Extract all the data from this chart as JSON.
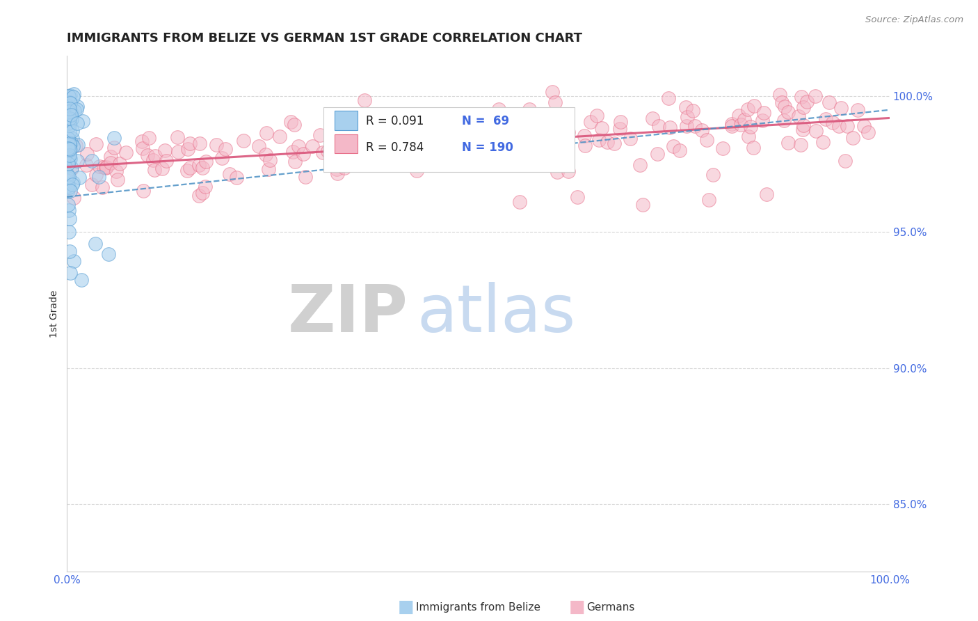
{
  "title": "IMMIGRANTS FROM BELIZE VS GERMAN 1ST GRADE CORRELATION CHART",
  "source_text": "Source: ZipAtlas.com",
  "ylabel": "1st Grade",
  "y_ticks": [
    0.85,
    0.9,
    0.95,
    1.0
  ],
  "y_tick_labels": [
    "85.0%",
    "90.0%",
    "95.0%",
    "100.0%"
  ],
  "x_range": [
    0.0,
    1.0
  ],
  "y_range": [
    0.825,
    1.015
  ],
  "belize_R": 0.091,
  "belize_N": 69,
  "german_R": 0.784,
  "german_N": 190,
  "belize_color": "#a8d0ee",
  "german_color": "#f4b8c8",
  "belize_edge_color": "#5a9fd4",
  "german_edge_color": "#e8708a",
  "belize_line_color": "#4a90c4",
  "german_line_color": "#d9547a",
  "legend_label_belize": "Immigrants from Belize",
  "legend_label_german": "Germans",
  "title_fontsize": 13,
  "axis_color": "#4169e1",
  "background_color": "#ffffff",
  "grid_color": "#bbbbbb"
}
